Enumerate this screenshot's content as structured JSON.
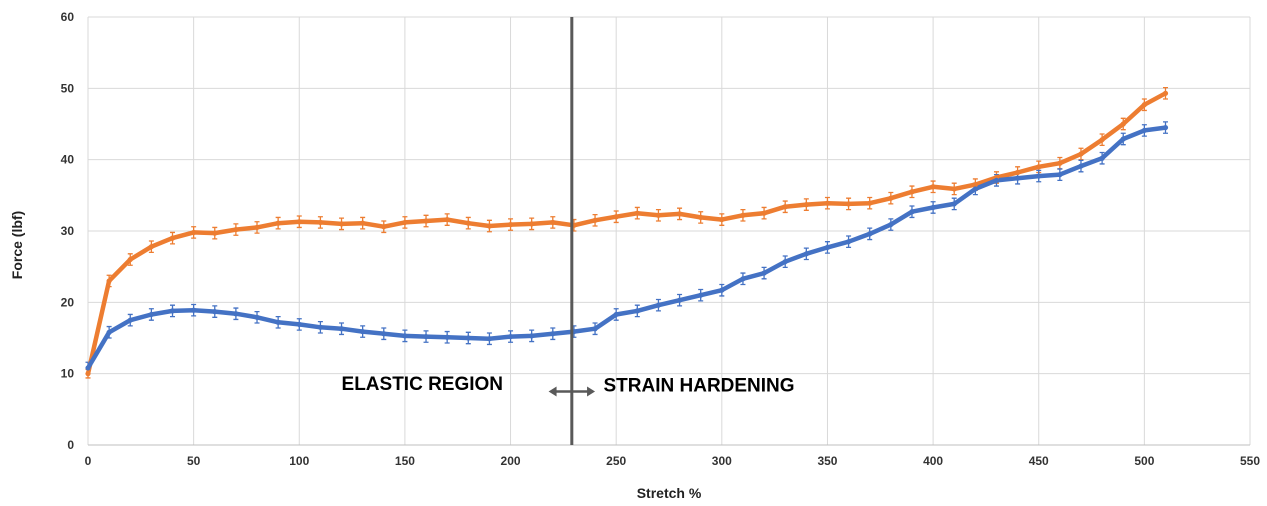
{
  "chart_data": {
    "type": "line",
    "title": "",
    "xlabel": "Stretch %",
    "ylabel": "Force (lbf)",
    "xlim": [
      0,
      550
    ],
    "ylim": [
      0,
      60
    ],
    "x_ticks": [
      0,
      50,
      100,
      150,
      200,
      250,
      300,
      350,
      400,
      450,
      500,
      550
    ],
    "y_ticks": [
      0,
      10,
      20,
      30,
      40,
      50,
      60
    ],
    "grid": true,
    "legend": "none",
    "x": [
      0,
      10,
      20,
      30,
      40,
      50,
      60,
      70,
      80,
      90,
      100,
      110,
      120,
      130,
      140,
      150,
      160,
      170,
      180,
      190,
      200,
      210,
      220,
      230,
      240,
      250,
      260,
      270,
      280,
      290,
      300,
      310,
      320,
      330,
      340,
      350,
      360,
      370,
      380,
      390,
      400,
      410,
      420,
      430,
      440,
      450,
      460,
      470,
      480,
      490,
      500,
      510
    ],
    "series": [
      {
        "color": "#ED7D31",
        "values": [
          10.0,
          23.0,
          26.0,
          27.8,
          29.0,
          29.8,
          29.7,
          30.2,
          30.5,
          31.1,
          31.3,
          31.2,
          31.0,
          31.1,
          30.6,
          31.2,
          31.4,
          31.6,
          31.1,
          30.7,
          30.9,
          31.0,
          31.2,
          30.8,
          31.5,
          32.0,
          32.5,
          32.2,
          32.4,
          31.9,
          31.6,
          32.2,
          32.5,
          33.4,
          33.7,
          33.9,
          33.8,
          33.9,
          34.6,
          35.5,
          36.2,
          35.9,
          36.5,
          37.5,
          38.2,
          39.0,
          39.5,
          40.8,
          42.8,
          45.0,
          47.7,
          49.3
        ],
        "errors": [
          0.6,
          0.8,
          0.8,
          0.8,
          0.8,
          0.8,
          0.8,
          0.8,
          0.8,
          0.8,
          0.8,
          0.8,
          0.8,
          0.8,
          0.8,
          0.8,
          0.8,
          0.8,
          0.8,
          0.8,
          0.8,
          0.8,
          0.8,
          0.8,
          0.8,
          0.8,
          0.8,
          0.8,
          0.8,
          0.8,
          0.8,
          0.8,
          0.8,
          0.8,
          0.8,
          0.8,
          0.8,
          0.8,
          0.8,
          0.8,
          0.8,
          0.8,
          0.8,
          0.8,
          0.8,
          0.8,
          0.8,
          0.8,
          0.8,
          0.8,
          0.8,
          0.8
        ]
      },
      {
        "color": "#4472C4",
        "values": [
          10.8,
          15.8,
          17.5,
          18.3,
          18.8,
          18.9,
          18.7,
          18.4,
          17.9,
          17.2,
          16.9,
          16.5,
          16.3,
          15.9,
          15.6,
          15.3,
          15.2,
          15.1,
          15.0,
          14.9,
          15.2,
          15.3,
          15.6,
          15.9,
          16.3,
          18.3,
          18.8,
          19.6,
          20.3,
          21.0,
          21.7,
          23.3,
          24.1,
          25.7,
          26.8,
          27.7,
          28.5,
          29.6,
          30.9,
          32.7,
          33.3,
          33.8,
          35.9,
          37.1,
          37.4,
          37.7,
          37.9,
          39.1,
          40.2,
          42.9,
          44.1,
          44.5
        ]
      }
    ],
    "annotations": [
      {
        "type": "vline",
        "x": 229,
        "color": "#595959"
      },
      {
        "type": "text",
        "text": "ELASTIC REGION",
        "x": 120,
        "y": 7.7
      },
      {
        "type": "double-arrow",
        "x_from": 218,
        "x_to": 240,
        "y": 7.5
      },
      {
        "type": "text",
        "text": "STRAIN HARDENING",
        "x": 244,
        "y": 7.5
      }
    ]
  }
}
